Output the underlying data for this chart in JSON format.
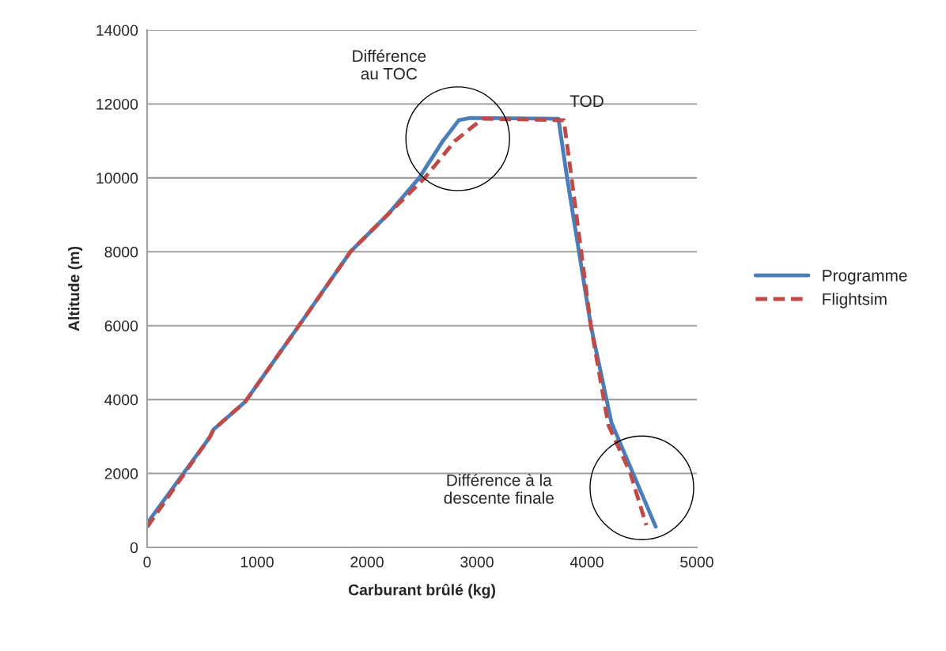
{
  "chart_data": {
    "type": "line",
    "xlabel": "Carburant brûlé (kg)",
    "ylabel": "Altitude (m)",
    "xlim": [
      0,
      5000
    ],
    "xticks": [
      0,
      1000,
      2000,
      3000,
      4000,
      5000
    ],
    "ylim": [
      0,
      14000
    ],
    "yticks": [
      0,
      2000,
      4000,
      6000,
      8000,
      10000,
      12000,
      14000
    ],
    "grid": "y",
    "legend": "right",
    "annotations": [
      "Différence\nau TOC",
      "TOD",
      "Différence à la\ndescente finale"
    ],
    "series": [
      {
        "name": "Programme",
        "color": "#4a7ebb",
        "line_style": "solid",
        "x": [
          0,
          568,
          604,
          892,
          1381,
          1849,
          2187,
          2475,
          2690,
          2835,
          2940,
          3741,
          3820,
          4036,
          4223,
          4626
        ],
        "values": [
          650,
          2975,
          3190,
          3940,
          6000,
          8000,
          9000,
          10000,
          11000,
          11560,
          11620,
          11600,
          10000,
          6000,
          3380,
          560
        ]
      },
      {
        "name": "Flightsim",
        "color": "#be4b48",
        "line_style": "dashed",
        "x": [
          0,
          568,
          604,
          892,
          1381,
          1849,
          2187,
          2525,
          2800,
          3050,
          3790,
          3856,
          4036,
          4194,
          4396,
          4540
        ],
        "values": [
          550,
          2975,
          3190,
          3940,
          6000,
          8000,
          9000,
          10000,
          11000,
          11600,
          11560,
          10100,
          6000,
          3320,
          2000,
          600
        ]
      }
    ]
  }
}
